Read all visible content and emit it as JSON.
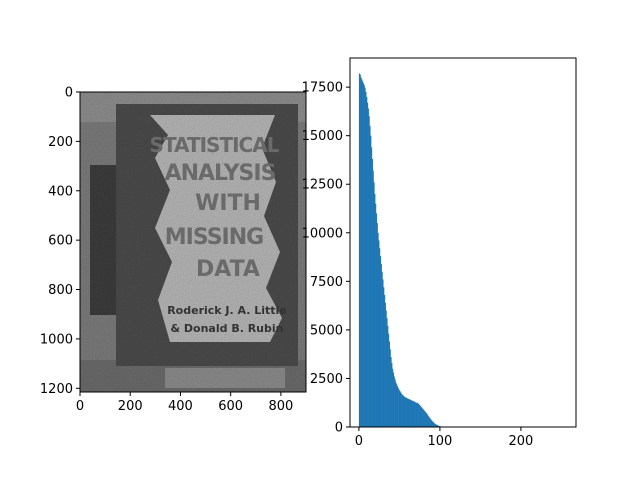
{
  "figure": {
    "background": "#ffffff"
  },
  "chart_data": [
    {
      "type": "image",
      "description_words": [
        "STATISTICAL",
        "ANALYSIS",
        "WITH",
        "MISSING",
        "DATA"
      ],
      "authors_words": [
        "Roderick J. A. Little",
        "& Donald B. Rubin"
      ],
      "x_ticks": [
        0,
        200,
        400,
        600,
        800
      ],
      "y_ticks": [
        0,
        200,
        400,
        600,
        800,
        1000,
        1200
      ],
      "xlim": [
        0,
        900
      ],
      "ylim": [
        1215,
        0
      ],
      "x_tick_labels": [
        "0",
        "200",
        "400",
        "600",
        "800"
      ],
      "y_tick_labels": [
        "0",
        "200",
        "400",
        "600",
        "800",
        "1000",
        "1200"
      ]
    },
    {
      "type": "bar",
      "bar_color": "#1f77b4",
      "bins": {
        "x_start": 0,
        "bin_width": 1,
        "values": [
          18200,
          18150,
          18000,
          17900,
          17800,
          17700,
          17600,
          17450,
          17250,
          17000,
          16700,
          16400,
          16000,
          15500,
          15000,
          14400,
          13800,
          13200,
          12600,
          12000,
          11500,
          11000,
          10500,
          10000,
          9600,
          9200,
          8800,
          8400,
          8000,
          7600,
          7200,
          6800,
          6400,
          6000,
          5600,
          5200,
          4800,
          4400,
          4000,
          3600,
          3300,
          3000,
          2800,
          2600,
          2450,
          2300,
          2200,
          2100,
          2000,
          1920,
          1850,
          1780,
          1720,
          1660,
          1620,
          1580,
          1550,
          1520,
          1500,
          1480,
          1460,
          1440,
          1420,
          1400,
          1380,
          1360,
          1340,
          1320,
          1300,
          1280,
          1260,
          1240,
          1220,
          1200,
          1150,
          1100,
          1050,
          1000,
          950,
          900,
          850,
          800,
          750,
          700,
          640,
          580,
          520,
          460,
          400,
          350,
          300,
          260,
          220,
          180,
          150,
          120,
          100,
          80,
          60,
          45,
          35,
          25,
          18,
          12,
          8,
          5,
          3,
          2,
          1
        ]
      },
      "xlim": [
        -11,
        268
      ],
      "ylim": [
        0,
        19000
      ],
      "x_ticks": [
        0,
        100,
        200
      ],
      "x_tick_labels": [
        "0",
        "100",
        "200"
      ],
      "y_ticks": [
        0,
        2500,
        5000,
        7500,
        10000,
        12500,
        15000,
        17500
      ],
      "y_tick_labels": [
        "0",
        "2500",
        "5000",
        "7500",
        "10000",
        "12500",
        "15000",
        "17500"
      ]
    }
  ]
}
